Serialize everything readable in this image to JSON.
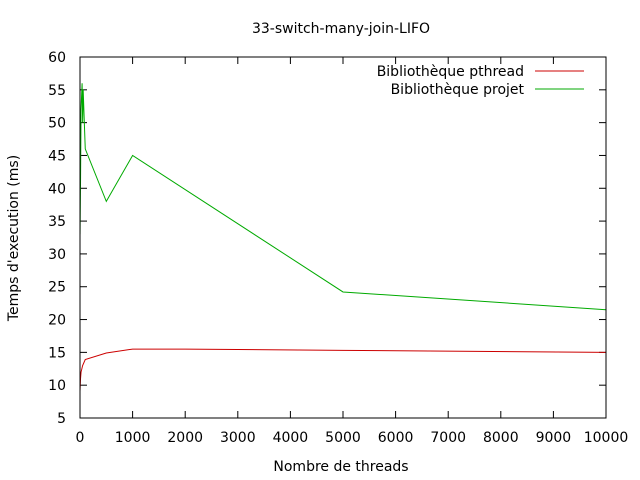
{
  "chart_data": {
    "type": "line",
    "title": "33-switch-many-join-LIFO",
    "xlabel": "Nombre de threads",
    "ylabel": "Temps d'execution (ms)",
    "xlim": [
      0,
      10000
    ],
    "ylim": [
      5,
      60
    ],
    "xticks": [
      0,
      1000,
      2000,
      3000,
      4000,
      5000,
      6000,
      7000,
      8000,
      9000,
      10000
    ],
    "yticks": [
      5,
      10,
      15,
      20,
      25,
      30,
      35,
      40,
      45,
      50,
      55,
      60
    ],
    "grid": false,
    "legend_position": "top-right",
    "series": [
      {
        "name": "Bibliothèque pthread",
        "color": "#cc0000",
        "x": [
          1,
          10,
          20,
          50,
          100,
          500,
          1000,
          2000,
          5000,
          10000
        ],
        "y": [
          9.2,
          11.0,
          12.0,
          13.0,
          13.9,
          14.9,
          15.5,
          15.5,
          15.3,
          15.0
        ]
      },
      {
        "name": "Bibliothèque projet",
        "color": "#00aa00",
        "x": [
          1,
          10,
          20,
          40,
          50,
          60,
          100,
          500,
          1000,
          5000,
          10000
        ],
        "y": [
          33.0,
          41.0,
          52.0,
          56.0,
          50.0,
          55.0,
          46.0,
          38.0,
          45.0,
          24.2,
          21.5
        ]
      }
    ]
  }
}
